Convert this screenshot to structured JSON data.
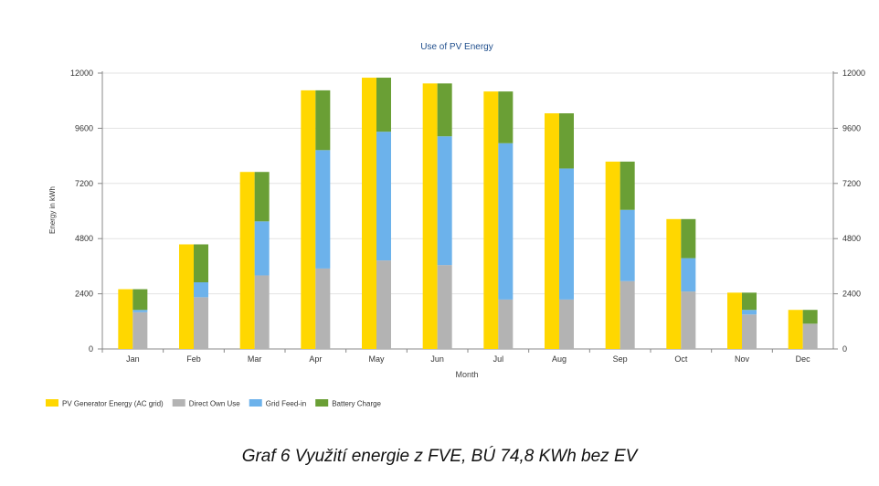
{
  "chart_data": {
    "type": "bar",
    "title": "Use of PV Energy",
    "xlabel": "Month",
    "ylabel": "Energy in kWh",
    "ylim": [
      0,
      12000
    ],
    "yticks": [
      0,
      2400,
      4800,
      7200,
      9600,
      12000
    ],
    "secondary_axis_ticks": [
      0,
      2400,
      4800,
      7200,
      9600,
      12000
    ],
    "grid": true,
    "legend_position": "bottom-left",
    "categories": [
      "Jan",
      "Feb",
      "Mar",
      "Apr",
      "May",
      "Jun",
      "Jul",
      "Aug",
      "Sep",
      "Oct",
      "Nov",
      "Dec"
    ],
    "series": [
      {
        "name": "PV Generator Energy (AC grid)",
        "color": "#FFD700",
        "stack": "generation",
        "values": [
          2600,
          4550,
          7700,
          11250,
          11800,
          11550,
          11200,
          10250,
          8150,
          5650,
          2450,
          1700
        ]
      },
      {
        "name": "Direct Own Use",
        "color": "#B3B3B3",
        "stack": "usage",
        "values": [
          1600,
          2250,
          3200,
          3500,
          3850,
          3650,
          2150,
          2150,
          2950,
          2500,
          1500,
          1100
        ]
      },
      {
        "name": "Grid Feed-in",
        "color": "#6CB2EB",
        "stack": "usage",
        "values": [
          100,
          650,
          2350,
          5150,
          5600,
          5600,
          6800,
          5700,
          3100,
          1450,
          200,
          0
        ]
      },
      {
        "name": "Battery Charge",
        "color": "#6A9F35",
        "stack": "usage",
        "values": [
          900,
          1650,
          2150,
          2600,
          2350,
          2300,
          2250,
          2400,
          2100,
          1700,
          750,
          600
        ]
      }
    ]
  },
  "caption": "Graf 6 Využití energie z FVE, BÚ 74,8 KWh bez EV"
}
